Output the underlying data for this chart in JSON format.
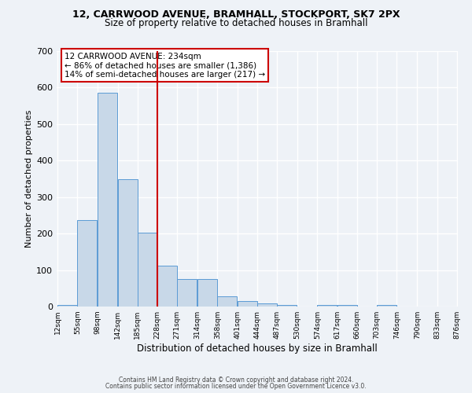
{
  "title1": "12, CARRWOOD AVENUE, BRAMHALL, STOCKPORT, SK7 2PX",
  "title2": "Size of property relative to detached houses in Bramhall",
  "xlabel": "Distribution of detached houses by size in Bramhall",
  "ylabel": "Number of detached properties",
  "footer1": "Contains HM Land Registry data © Crown copyright and database right 2024.",
  "footer2": "Contains public sector information licensed under the Open Government Licence v3.0.",
  "annotation_line1": "12 CARRWOOD AVENUE: 234sqm",
  "annotation_line2": "← 86% of detached houses are smaller (1,386)",
  "annotation_line3": "14% of semi-detached houses are larger (217) →",
  "bar_left_edges": [
    12,
    55,
    98,
    142,
    185,
    228,
    271,
    314,
    358,
    401,
    444,
    487,
    530,
    574,
    617,
    660,
    703,
    746,
    790,
    833
  ],
  "bar_labels": [
    "12sqm",
    "55sqm",
    "98sqm",
    "142sqm",
    "185sqm",
    "228sqm",
    "271sqm",
    "314sqm",
    "358sqm",
    "401sqm",
    "444sqm",
    "487sqm",
    "530sqm",
    "574sqm",
    "617sqm",
    "660sqm",
    "703sqm",
    "746sqm",
    "790sqm",
    "833sqm",
    "876sqm"
  ],
  "bar_heights": [
    5,
    238,
    585,
    350,
    203,
    113,
    75,
    75,
    28,
    15,
    8,
    5,
    0,
    5,
    5,
    0,
    5,
    0,
    0,
    0
  ],
  "bar_color": "#C8D8E8",
  "bar_edge_color": "#5B9BD5",
  "vline_x": 228,
  "vline_color": "#CC0000",
  "ylim": [
    0,
    700
  ],
  "yticks": [
    0,
    100,
    200,
    300,
    400,
    500,
    600,
    700
  ],
  "background_color": "#EEF2F7",
  "grid_color": "#FFFFFF",
  "annotation_box_facecolor": "#FFFFFF",
  "annotation_box_edgecolor": "#CC0000"
}
